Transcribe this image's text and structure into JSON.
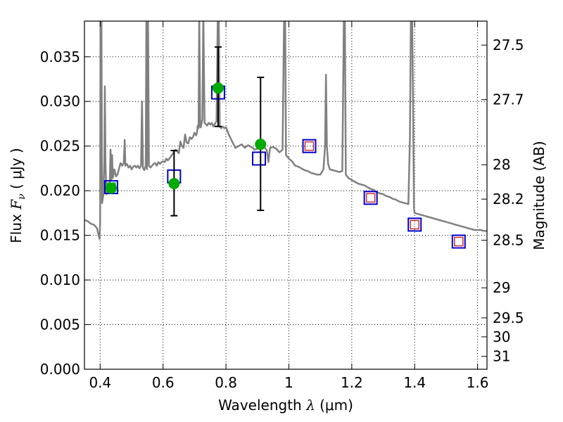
{
  "chart_data": {
    "type": "scatter",
    "xlabel_prefix": "Wavelength",
    "xlabel_symbol": "λ",
    "xlabel_units": "(μm)",
    "ylabel_prefix": "Flux",
    "ylabel_symbol": "F",
    "ylabel_subscript": "ν",
    "ylabel_units": "( μJy )",
    "y2label": "Magnitude (AB)",
    "xlim": [
      0.35,
      1.63
    ],
    "ylim": [
      0.0,
      0.039
    ],
    "x_ticks": [
      0.4,
      0.6,
      0.8,
      1.0,
      1.2,
      1.4,
      1.6
    ],
    "x_tick_labels": [
      "0.4",
      "0.6",
      "0.8",
      "1",
      "1.2",
      "1.4",
      "1.6"
    ],
    "y_ticks": [
      0.0,
      0.005,
      0.01,
      0.015,
      0.02,
      0.025,
      0.03,
      0.035
    ],
    "y_tick_labels": [
      "0.000",
      "0.005",
      "0.010",
      "0.015",
      "0.020",
      "0.025",
      "0.030",
      "0.035"
    ],
    "y2_ticks": [
      27.5,
      27.7,
      28,
      28.2,
      28.5,
      29,
      29.5,
      30,
      31
    ],
    "y2_tick_labels": [
      "27.5",
      "27.7",
      "28",
      "28.2",
      "28.5",
      "29",
      "29.5",
      "30",
      "31"
    ],
    "grid": true,
    "colors": {
      "spectrum": "#808080",
      "model_box": "#0000cc",
      "observed": "#00aa00",
      "errorbar": "#000000",
      "hst_inner_box": "#cc3333",
      "optical_inner_box": "#22aa22"
    },
    "series": [
      {
        "kind": "spectrum",
        "points": [
          [
            0.35,
            0.0167
          ],
          [
            0.36,
            0.0166
          ],
          [
            0.37,
            0.0163
          ],
          [
            0.38,
            0.0162
          ],
          [
            0.39,
            0.0158
          ],
          [
            0.395,
            0.015
          ],
          [
            0.398,
            0.0146
          ],
          [
            0.4,
            0.0163
          ],
          [
            0.401,
            0.04
          ],
          [
            0.404,
            0.04
          ],
          [
            0.406,
            0.0186
          ],
          [
            0.41,
            0.0195
          ],
          [
            0.413,
            0.023
          ],
          [
            0.415,
            0.0317
          ],
          [
            0.417,
            0.023
          ],
          [
            0.42,
            0.0196
          ],
          [
            0.425,
            0.0204
          ],
          [
            0.43,
            0.0205
          ],
          [
            0.433,
            0.0246
          ],
          [
            0.435,
            0.0212
          ],
          [
            0.438,
            0.024
          ],
          [
            0.44,
            0.0214
          ],
          [
            0.445,
            0.0224
          ],
          [
            0.45,
            0.0216
          ],
          [
            0.455,
            0.0218
          ],
          [
            0.46,
            0.0225
          ],
          [
            0.465,
            0.0231
          ],
          [
            0.47,
            0.0228
          ],
          [
            0.475,
            0.0231
          ],
          [
            0.478,
            0.0257
          ],
          [
            0.48,
            0.0228
          ],
          [
            0.485,
            0.023
          ],
          [
            0.49,
            0.0226
          ],
          [
            0.495,
            0.0228
          ],
          [
            0.5,
            0.0224
          ],
          [
            0.505,
            0.0227
          ],
          [
            0.51,
            0.0228
          ],
          [
            0.515,
            0.0226
          ],
          [
            0.52,
            0.0228
          ],
          [
            0.525,
            0.0225
          ],
          [
            0.53,
            0.0228
          ],
          [
            0.533,
            0.03
          ],
          [
            0.536,
            0.0226
          ],
          [
            0.54,
            0.0223
          ],
          [
            0.545,
            0.0228
          ],
          [
            0.547,
            0.04
          ],
          [
            0.549,
            0.0224
          ],
          [
            0.552,
            0.04
          ],
          [
            0.555,
            0.0228
          ],
          [
            0.56,
            0.0226
          ],
          [
            0.565,
            0.0228
          ],
          [
            0.57,
            0.023
          ],
          [
            0.575,
            0.0231
          ],
          [
            0.58,
            0.0228
          ],
          [
            0.585,
            0.0232
          ],
          [
            0.59,
            0.023
          ],
          [
            0.595,
            0.0232
          ],
          [
            0.6,
            0.0233
          ],
          [
            0.605,
            0.0232
          ],
          [
            0.61,
            0.0236
          ],
          [
            0.615,
            0.0234
          ],
          [
            0.62,
            0.0236
          ],
          [
            0.63,
            0.0241
          ],
          [
            0.64,
            0.0246
          ],
          [
            0.65,
            0.0242
          ],
          [
            0.655,
            0.0255
          ],
          [
            0.66,
            0.025
          ],
          [
            0.665,
            0.0248
          ],
          [
            0.67,
            0.0263
          ],
          [
            0.675,
            0.0254
          ],
          [
            0.68,
            0.0253
          ],
          [
            0.685,
            0.026
          ],
          [
            0.69,
            0.0258
          ],
          [
            0.695,
            0.026
          ],
          [
            0.7,
            0.0265
          ],
          [
            0.705,
            0.0262
          ],
          [
            0.708,
            0.0265
          ],
          [
            0.71,
            0.0273
          ],
          [
            0.713,
            0.027
          ],
          [
            0.715,
            0.04
          ],
          [
            0.718,
            0.0272
          ],
          [
            0.72,
            0.0271
          ],
          [
            0.725,
            0.028
          ],
          [
            0.728,
            0.04
          ],
          [
            0.732,
            0.0276
          ],
          [
            0.74,
            0.0273
          ],
          [
            0.745,
            0.0276
          ],
          [
            0.75,
            0.0274
          ],
          [
            0.755,
            0.0276
          ],
          [
            0.76,
            0.0272
          ],
          [
            0.765,
            0.0275
          ],
          [
            0.77,
            0.0278
          ],
          [
            0.774,
            0.04
          ],
          [
            0.777,
            0.04
          ],
          [
            0.78,
            0.0272
          ],
          [
            0.785,
            0.027
          ],
          [
            0.79,
            0.0272
          ],
          [
            0.795,
            0.027
          ],
          [
            0.8,
            0.0271
          ],
          [
            0.81,
            0.0262
          ],
          [
            0.82,
            0.0255
          ],
          [
            0.83,
            0.0248
          ],
          [
            0.84,
            0.025
          ],
          [
            0.85,
            0.0252
          ],
          [
            0.86,
            0.0248
          ],
          [
            0.87,
            0.0251
          ],
          [
            0.88,
            0.0249
          ],
          [
            0.885,
            0.0248
          ],
          [
            0.89,
            0.0246
          ],
          [
            0.9,
            0.0247
          ],
          [
            0.91,
            0.0248
          ],
          [
            0.92,
            0.025
          ],
          [
            0.93,
            0.0245
          ],
          [
            0.935,
            0.0232
          ],
          [
            0.94,
            0.0248
          ],
          [
            0.95,
            0.0249
          ],
          [
            0.96,
            0.0247
          ],
          [
            0.97,
            0.0243
          ],
          [
            0.98,
            0.0246
          ],
          [
            0.985,
            0.04
          ],
          [
            0.988,
            0.04
          ],
          [
            0.991,
            0.024
          ],
          [
            1.0,
            0.0236
          ],
          [
            1.01,
            0.0233
          ],
          [
            1.02,
            0.0228
          ],
          [
            1.03,
            0.0227
          ],
          [
            1.04,
            0.0225
          ],
          [
            1.05,
            0.0223
          ],
          [
            1.06,
            0.0222
          ],
          [
            1.07,
            0.022
          ],
          [
            1.08,
            0.0219
          ],
          [
            1.09,
            0.0218
          ],
          [
            1.1,
            0.0218
          ],
          [
            1.11,
            0.0224
          ],
          [
            1.115,
            0.025
          ],
          [
            1.118,
            0.033
          ],
          [
            1.121,
            0.025
          ],
          [
            1.125,
            0.023
          ],
          [
            1.13,
            0.0224
          ],
          [
            1.14,
            0.0223
          ],
          [
            1.15,
            0.0222
          ],
          [
            1.16,
            0.0221
          ],
          [
            1.17,
            0.0222
          ],
          [
            1.175,
            0.04
          ],
          [
            1.178,
            0.04
          ],
          [
            1.181,
            0.0218
          ],
          [
            1.19,
            0.0214
          ],
          [
            1.2,
            0.0212
          ],
          [
            1.21,
            0.021
          ],
          [
            1.22,
            0.0208
          ],
          [
            1.23,
            0.0207
          ],
          [
            1.24,
            0.0206
          ],
          [
            1.25,
            0.0204
          ],
          [
            1.26,
            0.0202
          ],
          [
            1.27,
            0.0201
          ],
          [
            1.28,
            0.0198
          ],
          [
            1.29,
            0.0197
          ],
          [
            1.3,
            0.0196
          ],
          [
            1.31,
            0.0194
          ],
          [
            1.32,
            0.0193
          ],
          [
            1.33,
            0.0191
          ],
          [
            1.34,
            0.019
          ],
          [
            1.35,
            0.0188
          ],
          [
            1.36,
            0.0187
          ],
          [
            1.37,
            0.0186
          ],
          [
            1.38,
            0.0185
          ],
          [
            1.385,
            0.026
          ],
          [
            1.388,
            0.04
          ],
          [
            1.392,
            0.04
          ],
          [
            1.395,
            0.029
          ],
          [
            1.398,
            0.018
          ],
          [
            1.4,
            0.0175
          ],
          [
            1.41,
            0.0174
          ],
          [
            1.42,
            0.0173
          ],
          [
            1.43,
            0.0172
          ],
          [
            1.44,
            0.0171
          ],
          [
            1.45,
            0.017
          ],
          [
            1.46,
            0.0169
          ],
          [
            1.47,
            0.0168
          ],
          [
            1.48,
            0.0167
          ],
          [
            1.49,
            0.0166
          ],
          [
            1.5,
            0.0165
          ],
          [
            1.51,
            0.0164
          ],
          [
            1.52,
            0.0163
          ],
          [
            1.53,
            0.0162
          ],
          [
            1.54,
            0.0161
          ],
          [
            1.55,
            0.016
          ],
          [
            1.56,
            0.0159
          ],
          [
            1.57,
            0.0158
          ],
          [
            1.58,
            0.0157
          ],
          [
            1.59,
            0.0156
          ],
          [
            1.6,
            0.0156
          ],
          [
            1.61,
            0.0156
          ],
          [
            1.62,
            0.0155
          ],
          [
            1.63,
            0.0155
          ]
        ]
      },
      {
        "kind": "model_boxes",
        "points": [
          [
            0.435,
            0.0204,
            "optical"
          ],
          [
            0.635,
            0.0216,
            "none"
          ],
          [
            0.775,
            0.031,
            "none"
          ],
          [
            0.905,
            0.0236,
            "none"
          ],
          [
            1.065,
            0.025,
            "hst"
          ],
          [
            1.26,
            0.0192,
            "hst"
          ],
          [
            1.4,
            0.0162,
            "hst"
          ],
          [
            1.54,
            0.0143,
            "hst"
          ]
        ]
      },
      {
        "kind": "observed",
        "points": [
          [
            0.435,
            0.0203,
            null,
            null
          ],
          [
            0.635,
            0.0208,
            0.0172,
            0.0245
          ],
          [
            0.775,
            0.0315,
            0.0272,
            0.0361
          ],
          [
            0.91,
            0.0252,
            0.0178,
            0.0327
          ]
        ]
      }
    ]
  }
}
